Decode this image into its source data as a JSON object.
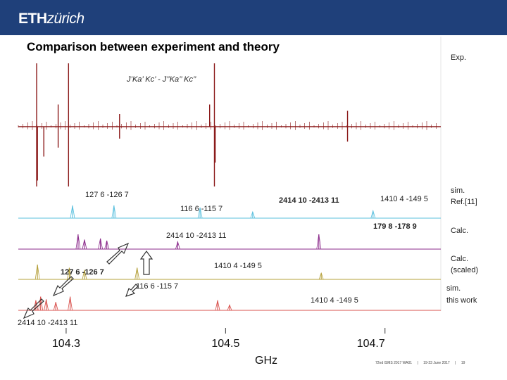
{
  "header": {
    "logo_bold": "ETH",
    "logo_rest": "zürich",
    "title": "Comparison between experiment and theory"
  },
  "footer": {
    "parts": [
      "72nd ISMS 2017 WA01",
      "|",
      "19-23 June 2017",
      "|",
      "19"
    ]
  },
  "colors": {
    "header_bg": "#1f407a",
    "exp": "#8b1a1a",
    "sim_ref": "#5bc0de",
    "calc": "#8b2a8b",
    "calc_scaled": "#b5a03a",
    "sim_this": "#d9534f"
  },
  "chart_data": {
    "type": "line",
    "xlabel": "GHz",
    "x_ticks": [
      "104.3",
      "104.5",
      "104.7"
    ],
    "xlim": [
      104.24,
      104.77
    ],
    "series": [
      {
        "name": "Exp.",
        "style": "exp",
        "peaks": [
          {
            "x": 104.263,
            "h": 1.0,
            "dir": "both"
          },
          {
            "x": 104.264,
            "h": 0.9,
            "dir": "down"
          },
          {
            "x": 104.272,
            "h": 0.5,
            "dir": "down"
          },
          {
            "x": 104.29,
            "h": 0.35,
            "dir": "both"
          },
          {
            "x": 104.303,
            "h": 1.0,
            "dir": "both"
          },
          {
            "x": 104.367,
            "h": 0.2,
            "dir": "both"
          },
          {
            "x": 104.48,
            "h": 0.35,
            "dir": "up"
          },
          {
            "x": 104.486,
            "h": 1.0,
            "dir": "both"
          },
          {
            "x": 104.487,
            "h": 0.6,
            "dir": "down"
          },
          {
            "x": 104.653,
            "h": 0.25,
            "dir": "both"
          }
        ]
      },
      {
        "name": "sim. Ref.[11]",
        "style": "sim_ref",
        "peaks": [
          {
            "x": 104.308,
            "h": 0.6
          },
          {
            "x": 104.36,
            "h": 0.6
          },
          {
            "x": 104.468,
            "h": 0.5
          },
          {
            "x": 104.534,
            "h": 0.3
          },
          {
            "x": 104.685,
            "h": 0.35
          }
        ]
      },
      {
        "name": "Calc.",
        "style": "calc",
        "peaks": [
          {
            "x": 104.315,
            "h": 0.7
          },
          {
            "x": 104.323,
            "h": 0.45
          },
          {
            "x": 104.343,
            "h": 0.5
          },
          {
            "x": 104.351,
            "h": 0.4
          },
          {
            "x": 104.44,
            "h": 0.35
          },
          {
            "x": 104.617,
            "h": 0.7
          }
        ]
      },
      {
        "name": "Calc. (scaled)",
        "style": "calc_scaled",
        "peaks": [
          {
            "x": 104.264,
            "h": 0.7
          },
          {
            "x": 104.304,
            "h": 0.55
          },
          {
            "x": 104.323,
            "h": 0.45
          },
          {
            "x": 104.389,
            "h": 0.55
          },
          {
            "x": 104.62,
            "h": 0.3
          }
        ]
      },
      {
        "name": "sim. this work",
        "style": "sim_this",
        "peaks": [
          {
            "x": 104.262,
            "h": 0.55
          },
          {
            "x": 104.268,
            "h": 0.75
          },
          {
            "x": 104.275,
            "h": 0.6
          },
          {
            "x": 104.287,
            "h": 0.45
          },
          {
            "x": 104.305,
            "h": 0.75
          },
          {
            "x": 104.49,
            "h": 0.55
          },
          {
            "x": 104.505,
            "h": 0.3
          }
        ]
      }
    ],
    "legend": [
      "Exp.",
      "sim.",
      "Ref.[11]",
      "Calc.",
      "Calc.",
      "(scaled)",
      "sim.",
      "this work"
    ]
  },
  "annotations": {
    "exp_label": "J’Ka’ Kc’ - J’’Ka’’ Kc’’",
    "labels": [
      "127 6 -126 7",
      "116 6 -115 7",
      "2414 10 -2413 11",
      "1410 4 -149 5",
      "2414 10 -2413 11",
      "179 8 -178 9",
      "1410 4 -149 5",
      "127 6 -126 7",
      "116 6 -115 7",
      "1410 4 -149 5",
      "2414 10 -2413 11"
    ]
  }
}
